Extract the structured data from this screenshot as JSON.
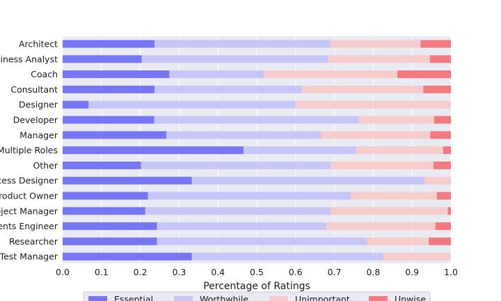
{
  "chart_data": {
    "type": "bar",
    "orientation": "horizontal",
    "stacked": true,
    "xlabel": "Percentage of Ratings",
    "ylabel": "",
    "xlim": [
      0,
      1
    ],
    "xticks": [
      0.0,
      0.1,
      0.2,
      0.3,
      0.4,
      0.5,
      0.6,
      0.7,
      0.8,
      0.9,
      1.0
    ],
    "xtick_labels": [
      "0.0",
      "0.1",
      "0.2",
      "0.3",
      "0.4",
      "0.5",
      "0.6",
      "0.7",
      "0.8",
      "0.9",
      "1.0"
    ],
    "grid": true,
    "legend_position": "bottom",
    "categories": [
      "Architect",
      "Business Analyst",
      "Coach",
      "Consultant",
      "Designer",
      "Developer",
      "Manager",
      "Multiple Roles",
      "Other",
      "Process Designer",
      "Product Owner",
      "Project Manager",
      "Requirements Engineer",
      "Researcher",
      "Test Manager"
    ],
    "series": [
      {
        "name": "Essential",
        "color": "#7777f5",
        "values": [
          0.237,
          0.204,
          0.275,
          0.237,
          0.067,
          0.236,
          0.267,
          0.466,
          0.202,
          0.333,
          0.22,
          0.213,
          0.243,
          0.243,
          0.333
        ]
      },
      {
        "name": "Worthwhile",
        "color": "#c7c7f7",
        "values": [
          0.453,
          0.48,
          0.244,
          0.381,
          0.533,
          0.527,
          0.399,
          0.29,
          0.487,
          0.6,
          0.523,
          0.477,
          0.436,
          0.541,
          0.493
        ]
      },
      {
        "name": "Unimportant",
        "color": "#f6cccd",
        "values": [
          0.232,
          0.262,
          0.343,
          0.311,
          0.4,
          0.194,
          0.281,
          0.224,
          0.266,
          0.067,
          0.221,
          0.302,
          0.281,
          0.159,
          0.174
        ]
      },
      {
        "name": "Unwise",
        "color": "#f27a80",
        "values": [
          0.078,
          0.054,
          0.138,
          0.071,
          0.0,
          0.043,
          0.053,
          0.02,
          0.045,
          0.0,
          0.036,
          0.008,
          0.04,
          0.057,
          0.0
        ]
      }
    ]
  }
}
